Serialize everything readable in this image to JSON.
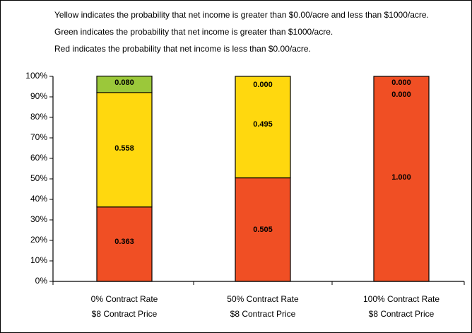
{
  "notes": [
    "Yellow indicates the probability that net income is greater than $0.00/acre and less than $1000/acre.",
    "Green indicates the probability that net income is greater than $1000/acre.",
    "Red indicates the probability that net income is less than $0.00/acre."
  ],
  "colors": {
    "red": "#f04f24",
    "yellow": "#ffd80e",
    "green": "#9bc83a",
    "axis": "#000000"
  },
  "chart_data": {
    "type": "bar",
    "stacked": true,
    "categories": [
      [
        "0% Contract Rate",
        "$8 Contract Price"
      ],
      [
        "50% Contract Rate",
        "$8 Contract Price"
      ],
      [
        "100% Contract Rate",
        "$8 Contract Price"
      ]
    ],
    "series": [
      {
        "name": "Red",
        "color_key": "red",
        "values": [
          0.363,
          0.505,
          1.0
        ],
        "labels": [
          "0.363",
          "0.505",
          "1.000"
        ]
      },
      {
        "name": "Yellow",
        "color_key": "yellow",
        "values": [
          0.558,
          0.495,
          0.0
        ],
        "labels": [
          "0.558",
          "0.495",
          "0.000"
        ]
      },
      {
        "name": "Green",
        "color_key": "green",
        "values": [
          0.08,
          0.0,
          0.0
        ],
        "labels": [
          "0.080",
          "0.000",
          "0.000"
        ]
      }
    ],
    "yticks": [
      "0%",
      "10%",
      "20%",
      "30%",
      "40%",
      "50%",
      "60%",
      "70%",
      "80%",
      "90%",
      "100%"
    ],
    "ylim": [
      0,
      1
    ],
    "grid": false,
    "legend": "none"
  }
}
